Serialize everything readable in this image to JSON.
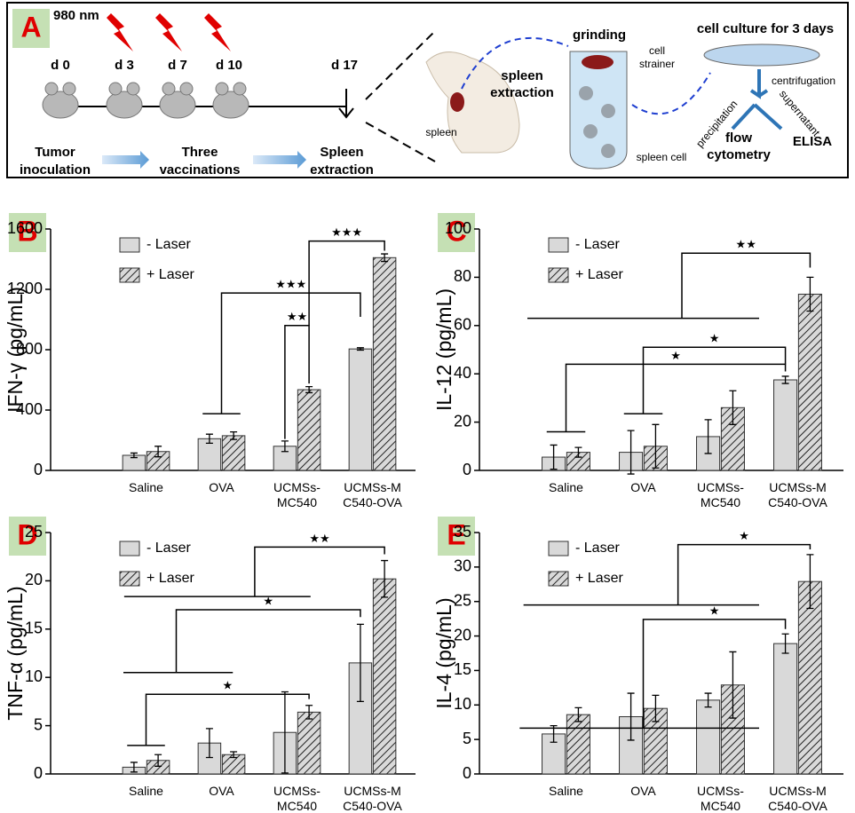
{
  "diagram": {
    "panel": "A",
    "laser": "980 nm",
    "days": [
      "d 0",
      "d 3",
      "d 7",
      "d 10",
      "d 17"
    ],
    "steps": [
      [
        "Tumor",
        "inoculation"
      ],
      [
        "Three",
        "vaccinations"
      ],
      [
        "Spleen",
        "extraction"
      ]
    ],
    "spleen_extraction": [
      "spleen",
      "extraction"
    ],
    "spleen": "spleen",
    "grinding": "grinding",
    "cell_strainer": [
      "cell",
      "strainer"
    ],
    "spleen_cell": "spleen cell",
    "culture": "cell culture for 3 days",
    "centrifugation": "centrifugation",
    "precipitation": "precipitation",
    "supernatant": "supernatant",
    "flow_cytometry": [
      "flow",
      "cytometry"
    ],
    "elisa": "ELISA"
  },
  "chart_data": [
    {
      "type": "bar",
      "panel": "B",
      "ylabel": "IFN-γ (pg/mL)",
      "categories": [
        [
          "Saline"
        ],
        [
          "OVA"
        ],
        [
          "UCMSs-",
          "MC540"
        ],
        [
          "UCMSs-M",
          "C540-OVA"
        ]
      ],
      "series": [
        {
          "name": "- Laser",
          "color": "#d9d9d9",
          "values": [
            100,
            210,
            160,
            805
          ],
          "errors": [
            15,
            30,
            35,
            8
          ]
        },
        {
          "name": "+ Laser",
          "color": "#d9d9d9",
          "hatch": true,
          "values": [
            125,
            230,
            535,
            1410
          ],
          "errors": [
            35,
            25,
            20,
            25
          ]
        }
      ],
      "ylim": [
        0,
        1600
      ],
      "yticks": [
        0,
        400,
        800,
        1200,
        1600
      ],
      "legend": "upper left",
      "annotations": [
        "★★★",
        "★★",
        "★★★"
      ]
    },
    {
      "type": "bar",
      "panel": "C",
      "ylabel": "IL-12 (pg/mL)",
      "categories": [
        [
          "Saline"
        ],
        [
          "OVA"
        ],
        [
          "UCMSs-",
          "MC540"
        ],
        [
          "UCMSs-M",
          "C540-OVA"
        ]
      ],
      "series": [
        {
          "name": "- Laser",
          "color": "#d9d9d9",
          "values": [
            5.5,
            7.5,
            14,
            37.5
          ],
          "errors": [
            5,
            9,
            7,
            1.5
          ]
        },
        {
          "name": "+ Laser",
          "color": "#d9d9d9",
          "hatch": true,
          "values": [
            7.5,
            10,
            26,
            73
          ],
          "errors": [
            2,
            9,
            7,
            7
          ]
        }
      ],
      "ylim": [
        0,
        100
      ],
      "yticks": [
        0,
        20,
        40,
        60,
        80,
        100
      ],
      "legend": "upper left",
      "annotations": [
        "★",
        "★",
        "★★"
      ]
    },
    {
      "type": "bar",
      "panel": "D",
      "ylabel": "TNF-α (pg/mL)",
      "categories": [
        [
          "Saline"
        ],
        [
          "OVA"
        ],
        [
          "UCMSs-",
          "MC540"
        ],
        [
          "UCMSs-M",
          "C540-OVA"
        ]
      ],
      "series": [
        {
          "name": "- Laser",
          "color": "#d9d9d9",
          "values": [
            0.7,
            3.2,
            4.3,
            11.5
          ],
          "errors": [
            0.5,
            1.5,
            4.2,
            4
          ]
        },
        {
          "name": "+ Laser",
          "color": "#d9d9d9",
          "hatch": true,
          "values": [
            1.4,
            2.0,
            6.4,
            20.2
          ],
          "errors": [
            0.6,
            0.3,
            0.7,
            1.9
          ]
        }
      ],
      "ylim": [
        0,
        25
      ],
      "yticks": [
        0,
        5,
        10,
        15,
        20,
        25
      ],
      "legend": "upper left",
      "annotations": [
        "★",
        "★",
        "★★"
      ]
    },
    {
      "type": "bar",
      "panel": "E",
      "ylabel": "IL-4 (pg/mL)",
      "categories": [
        [
          "Saline"
        ],
        [
          "OVA"
        ],
        [
          "UCMSs-",
          "MC540"
        ],
        [
          "UCMSs-M",
          "C540-OVA"
        ]
      ],
      "series": [
        {
          "name": "- Laser",
          "color": "#d9d9d9",
          "values": [
            5.8,
            8.3,
            10.7,
            18.9
          ],
          "errors": [
            1.2,
            3.4,
            1,
            1.4
          ]
        },
        {
          "name": "+ Laser",
          "color": "#d9d9d9",
          "hatch": true,
          "values": [
            8.6,
            9.5,
            12.9,
            27.9
          ],
          "errors": [
            1,
            1.9,
            4.8,
            3.9
          ]
        }
      ],
      "ylim": [
        0,
        35
      ],
      "yticks": [
        0,
        5,
        10,
        15,
        20,
        25,
        30,
        35
      ],
      "legend": "upper left",
      "annotations": [
        "★",
        "★"
      ]
    }
  ]
}
